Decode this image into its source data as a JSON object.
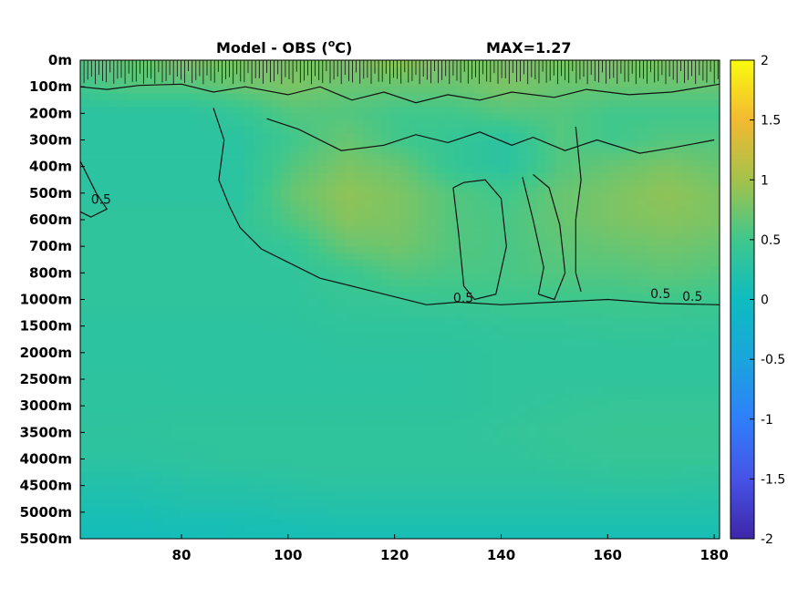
{
  "chart_data": {
    "type": "heatmap",
    "title_prefix": "Model - OBS (",
    "title_sup": "o",
    "title_suffix": "C)",
    "max_label": "MAX=1.27",
    "xlabel": "",
    "ylabel": "",
    "xlim": [
      61,
      181
    ],
    "x_ticks": [
      80,
      100,
      120,
      140,
      160,
      180
    ],
    "y_tick_labels": [
      "0m",
      "100m",
      "200m",
      "300m",
      "400m",
      "500m",
      "600m",
      "700m",
      "800m",
      "1000m",
      "1500m",
      "2000m",
      "2500m",
      "3000m",
      "3500m",
      "4000m",
      "4500m",
      "5000m",
      "5500m"
    ],
    "colorbar": {
      "range": [
        -2,
        2
      ],
      "ticks": [
        2,
        1.5,
        1,
        0.5,
        0,
        -0.5,
        -1,
        -1.5,
        -2
      ],
      "tick_labels": [
        "2",
        "1.5",
        "1",
        "0.5",
        "0",
        "-0.5",
        "-1",
        "-1.5",
        "-2"
      ]
    },
    "contour_labels": [
      {
        "text": "0.5",
        "x": 131,
        "depth_index": 9.1
      },
      {
        "text": "0.5",
        "x": 168,
        "depth_index": 8.95
      },
      {
        "text": "0.5",
        "x": 174,
        "depth_index": 9.05
      },
      {
        "text": "0.5",
        "x": 63,
        "depth_index": 5.4
      }
    ],
    "field_rows": [
      {
        "depth_index": 0,
        "values": [
          0.6,
          0.7,
          0.8,
          0.8,
          0.8,
          0.8,
          0.9,
          0.8,
          0.8,
          0.8,
          0.8,
          0.8,
          0.8
        ]
      },
      {
        "depth_index": 1,
        "values": [
          0.5,
          0.6,
          0.6,
          0.7,
          0.8,
          0.7,
          0.7,
          0.7,
          0.8,
          0.7,
          0.7,
          0.7,
          0.7
        ]
      },
      {
        "depth_index": 2,
        "values": [
          0.3,
          0.3,
          0.3,
          0.4,
          0.6,
          0.6,
          0.5,
          0.5,
          0.6,
          0.6,
          0.5,
          0.5,
          0.5
        ]
      },
      {
        "depth_index": 3,
        "values": [
          0.3,
          0.3,
          0.3,
          0.3,
          0.5,
          0.7,
          0.5,
          0.4,
          0.3,
          0.6,
          0.5,
          0.6,
          0.6
        ]
      },
      {
        "depth_index": 4,
        "values": [
          0.3,
          0.3,
          0.3,
          0.3,
          0.6,
          0.8,
          0.7,
          0.4,
          0.3,
          0.6,
          0.7,
          0.8,
          0.7
        ]
      },
      {
        "depth_index": 5,
        "values": [
          0.3,
          0.3,
          0.3,
          0.3,
          0.7,
          0.9,
          0.8,
          0.6,
          0.5,
          0.7,
          0.8,
          0.9,
          0.8
        ]
      },
      {
        "depth_index": 6,
        "values": [
          0.35,
          0.35,
          0.35,
          0.35,
          0.6,
          0.85,
          0.8,
          0.6,
          0.55,
          0.7,
          0.8,
          0.85,
          0.8
        ]
      },
      {
        "depth_index": 7,
        "values": [
          0.35,
          0.35,
          0.35,
          0.35,
          0.4,
          0.7,
          0.75,
          0.6,
          0.55,
          0.65,
          0.7,
          0.75,
          0.7
        ]
      },
      {
        "depth_index": 8,
        "values": [
          0.35,
          0.35,
          0.35,
          0.35,
          0.35,
          0.45,
          0.6,
          0.55,
          0.55,
          0.6,
          0.6,
          0.65,
          0.6
        ]
      },
      {
        "depth_index": 9,
        "values": [
          0.35,
          0.35,
          0.35,
          0.35,
          0.35,
          0.4,
          0.42,
          0.45,
          0.48,
          0.48,
          0.5,
          0.5,
          0.48
        ]
      },
      {
        "depth_index": 10,
        "values": [
          0.3,
          0.3,
          0.3,
          0.3,
          0.32,
          0.35,
          0.35,
          0.35,
          0.38,
          0.38,
          0.4,
          0.4,
          0.38
        ]
      },
      {
        "depth_index": 11,
        "values": [
          0.3,
          0.3,
          0.3,
          0.3,
          0.3,
          0.32,
          0.32,
          0.32,
          0.35,
          0.35,
          0.35,
          0.35,
          0.35
        ]
      },
      {
        "depth_index": 12,
        "values": [
          0.32,
          0.32,
          0.3,
          0.3,
          0.3,
          0.3,
          0.3,
          0.32,
          0.35,
          0.35,
          0.35,
          0.35,
          0.35
        ]
      },
      {
        "depth_index": 13,
        "values": [
          0.32,
          0.32,
          0.32,
          0.32,
          0.32,
          0.32,
          0.32,
          0.32,
          0.35,
          0.38,
          0.4,
          0.4,
          0.4
        ]
      },
      {
        "depth_index": 14,
        "values": [
          0.33,
          0.33,
          0.35,
          0.35,
          0.35,
          0.35,
          0.35,
          0.35,
          0.38,
          0.4,
          0.42,
          0.42,
          0.42
        ]
      },
      {
        "depth_index": 15,
        "values": [
          0.3,
          0.3,
          0.32,
          0.35,
          0.35,
          0.35,
          0.35,
          0.35,
          0.35,
          0.38,
          0.4,
          0.4,
          0.4
        ]
      },
      {
        "depth_index": 16,
        "values": [
          0.2,
          0.2,
          0.25,
          0.25,
          0.28,
          0.3,
          0.3,
          0.3,
          0.3,
          0.3,
          0.32,
          0.32,
          0.3
        ]
      },
      {
        "depth_index": 17,
        "values": [
          0.12,
          0.12,
          0.15,
          0.15,
          0.18,
          0.2,
          0.2,
          0.2,
          0.2,
          0.2,
          0.2,
          0.2,
          0.2
        ]
      },
      {
        "depth_index": 18,
        "values": [
          0.05,
          0.05,
          0.06,
          0.08,
          0.08,
          0.1,
          0.1,
          0.1,
          0.1,
          0.1,
          0.1,
          0.1,
          0.1
        ]
      }
    ],
    "field_x": [
      61,
      71,
      81,
      91,
      101,
      111,
      121,
      131,
      141,
      151,
      161,
      171,
      181
    ],
    "grid": false,
    "colormap": "parula"
  }
}
